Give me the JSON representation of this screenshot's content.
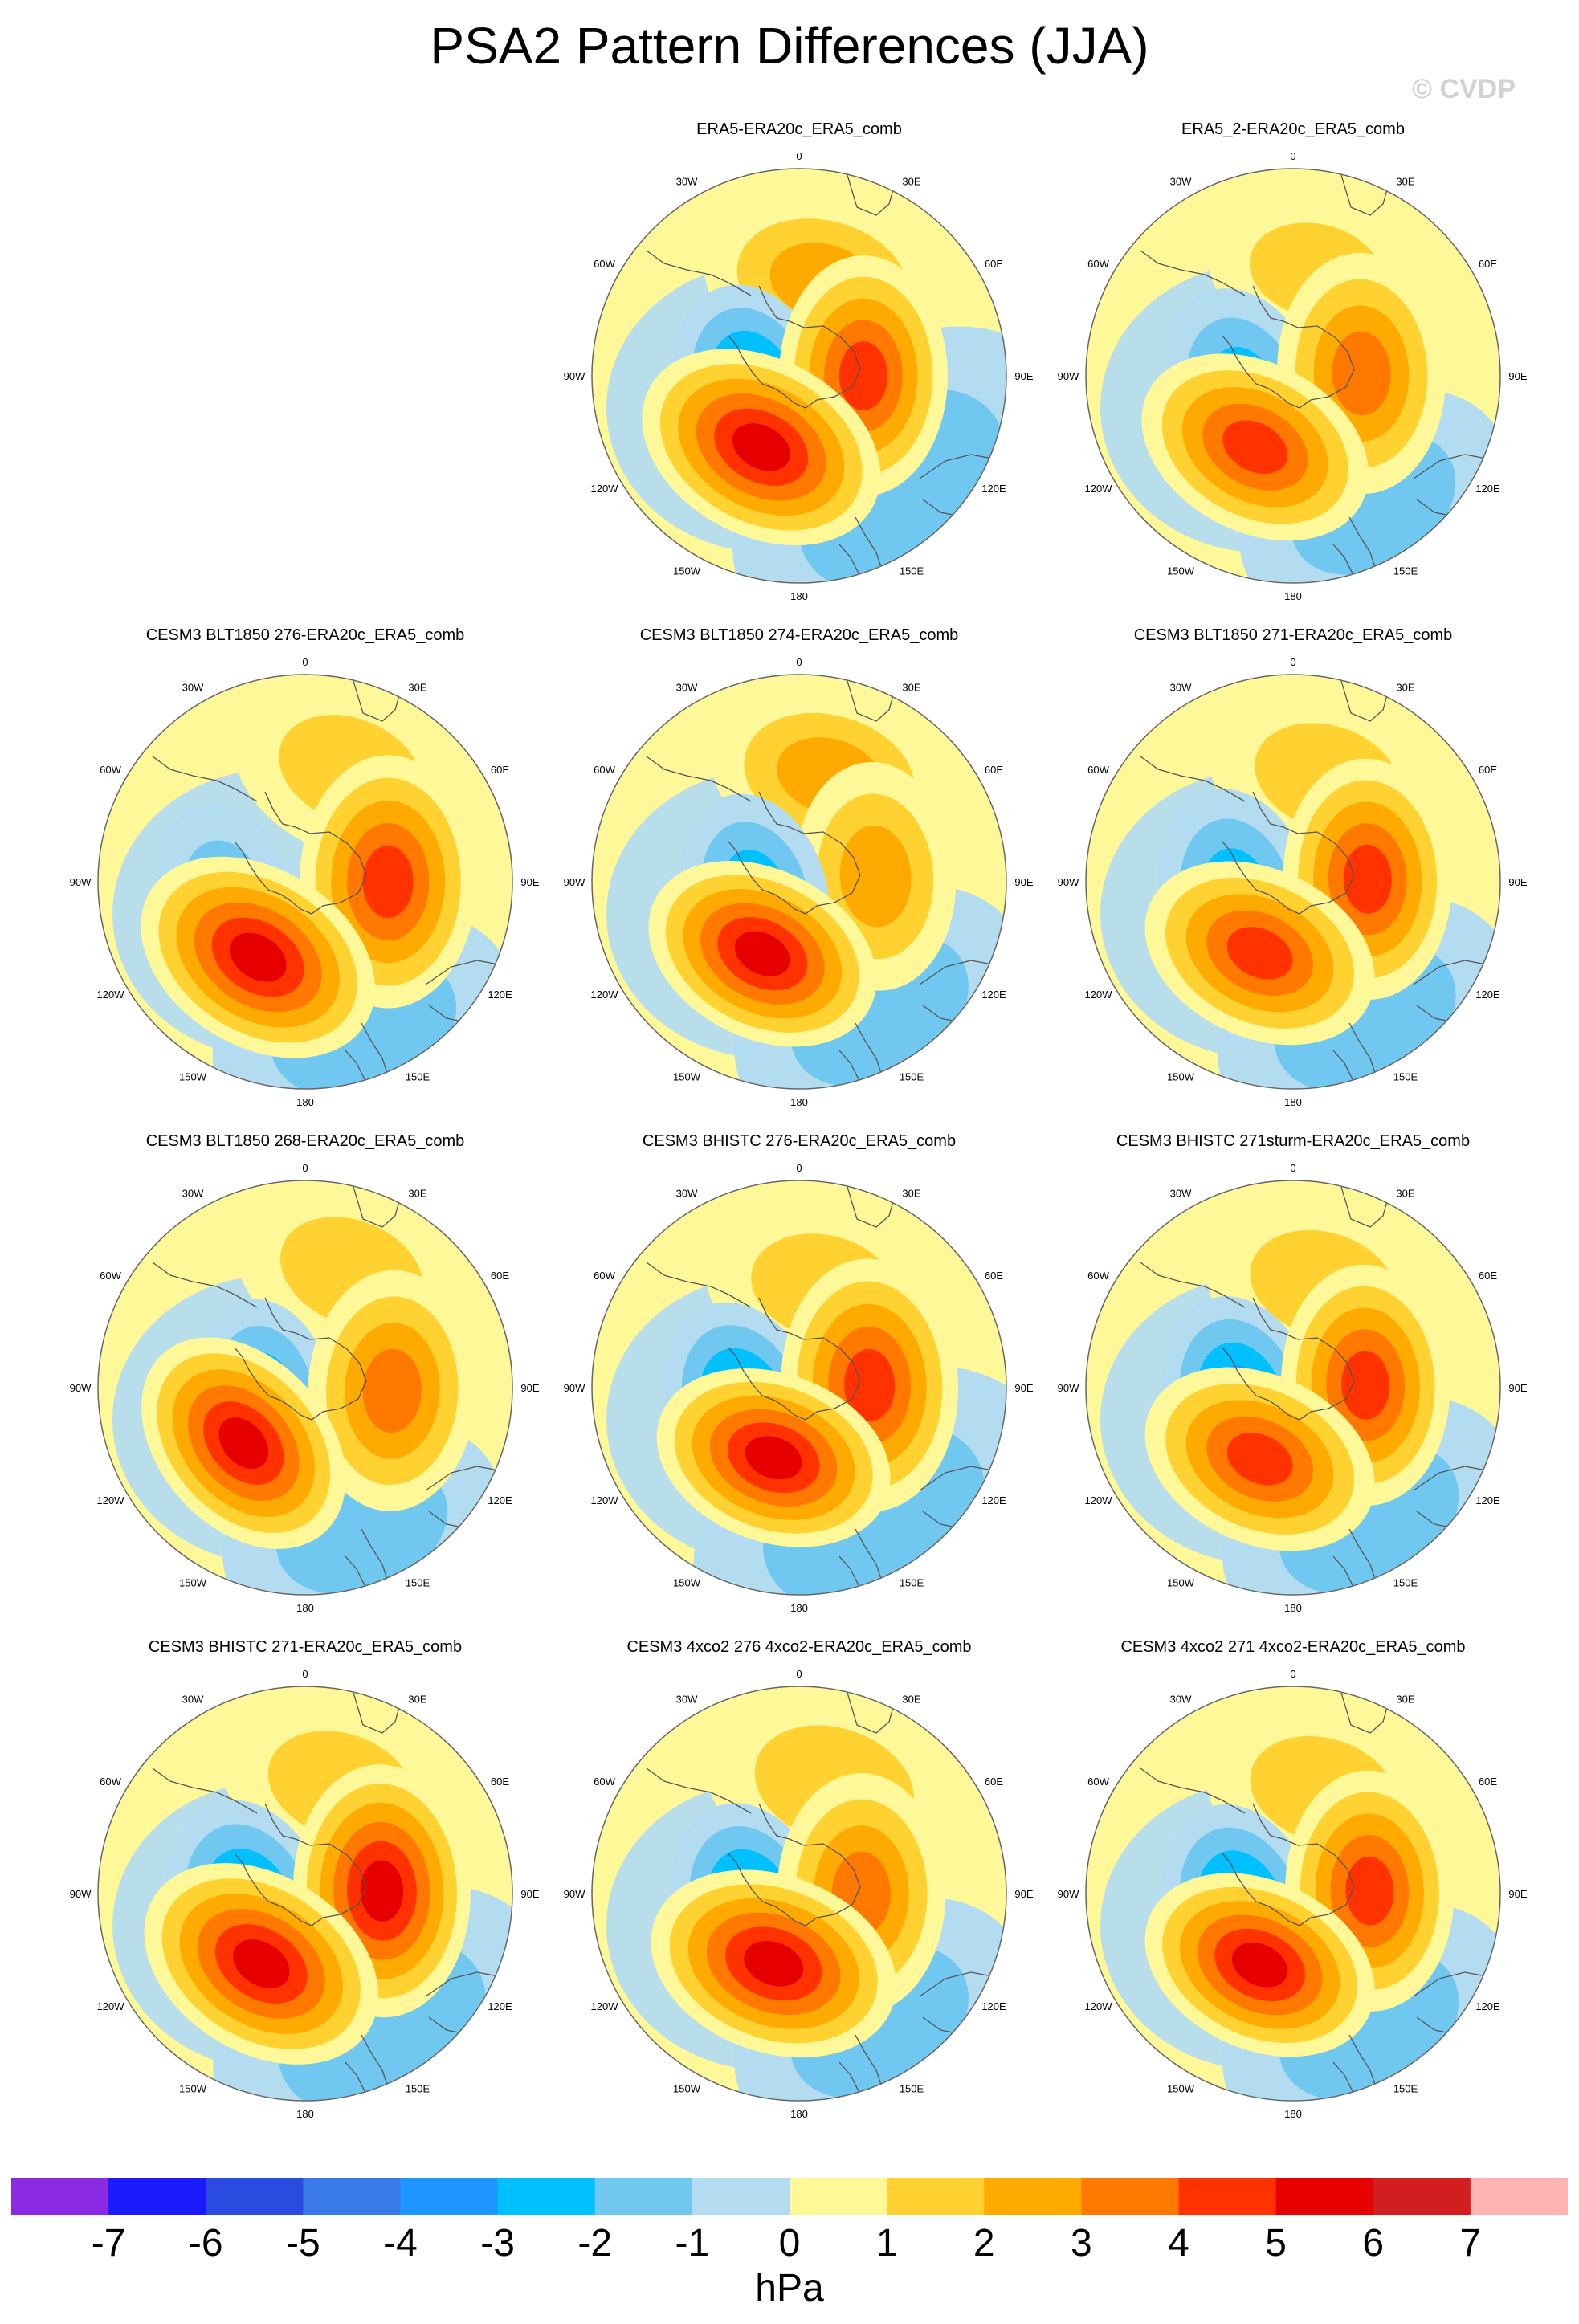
{
  "title": "PSA2 Pattern Differences (JJA)",
  "watermark": "© CVDP",
  "units": "hPa",
  "colors": {
    "levels": [
      "#8a2be2",
      "#1a1aff",
      "#2a4ae0",
      "#3a7ae8",
      "#1e96ff",
      "#00c0ff",
      "#70c8f0",
      "#b4dcf0",
      "#fff898",
      "#ffd232",
      "#ffaa00",
      "#ff7800",
      "#ff3200",
      "#e60000",
      "#d21e1e",
      "#ffb4b4"
    ],
    "coast": "#555555",
    "rim": "#666666"
  },
  "chart_data": {
    "type": "heatmap",
    "variable": "PSA2 pattern difference",
    "colorbar_ticks": [
      -7,
      -6,
      -5,
      -4,
      -3,
      -2,
      -1,
      0,
      1,
      2,
      3,
      4,
      5,
      6,
      7
    ],
    "lon_labels": [
      "0",
      "30E",
      "60E",
      "90E",
      "120E",
      "150E",
      "180",
      "150W",
      "120W",
      "90W",
      "60W",
      "30W"
    ],
    "panels": [
      {
        "title": "ERA5-ERA20c_ERA5_comb",
        "centers": [
          {
            "lon": 14,
            "colat": 0.47,
            "value": 2.3,
            "size": 1.0
          },
          {
            "lon": 90,
            "colat": 0.31,
            "value": 4.6,
            "size": 1.0
          },
          {
            "lon": 138,
            "colat": 0.74,
            "value": -1.4,
            "size": 1.6
          },
          {
            "lon": -152,
            "colat": 0.39,
            "value": 5.8,
            "size": 1.05
          },
          {
            "lon": -108,
            "colat": 0.23,
            "value": -3.3,
            "size": 0.9
          }
        ]
      },
      {
        "title": "ERA5_2-ERA20c_ERA5_comb",
        "centers": [
          {
            "lon": 12,
            "colat": 0.52,
            "value": 1.6,
            "size": 0.9
          },
          {
            "lon": 88,
            "colat": 0.33,
            "value": 4.0,
            "size": 1.0
          },
          {
            "lon": 148,
            "colat": 0.73,
            "value": -1.3,
            "size": 1.2
          },
          {
            "lon": -152,
            "colat": 0.39,
            "value": 5.0,
            "size": 1.0
          },
          {
            "lon": -110,
            "colat": 0.25,
            "value": -3.0,
            "size": 0.9
          }
        ]
      },
      {
        "title": "CESM3 BLT1850 276-ERA20c_ERA5_comb",
        "centers": [
          {
            "lon": 22,
            "colat": 0.58,
            "value": 1.8,
            "size": 1.0
          },
          {
            "lon": 90,
            "colat": 0.4,
            "value": 4.8,
            "size": 1.05
          },
          {
            "lon": 158,
            "colat": 0.75,
            "value": -1.2,
            "size": 1.3
          },
          {
            "lon": -148,
            "colat": 0.43,
            "value": 5.7,
            "size": 1.05
          },
          {
            "lon": -102,
            "colat": 0.4,
            "value": -1.8,
            "size": 0.8
          }
        ]
      },
      {
        "title": "CESM3 BLT1850 274-ERA20c_ERA5_comb",
        "centers": [
          {
            "lon": 16,
            "colat": 0.53,
            "value": 2.2,
            "size": 1.0
          },
          {
            "lon": 86,
            "colat": 0.37,
            "value": 2.7,
            "size": 0.95
          },
          {
            "lon": 148,
            "colat": 0.73,
            "value": -1.4,
            "size": 1.3
          },
          {
            "lon": -153,
            "colat": 0.39,
            "value": 5.3,
            "size": 1.0
          },
          {
            "lon": -106,
            "colat": 0.22,
            "value": -2.8,
            "size": 0.85
          }
        ]
      },
      {
        "title": "CESM3 BLT1850 271-ERA20c_ERA5_comb",
        "centers": [
          {
            "lon": 18,
            "colat": 0.53,
            "value": 2.0,
            "size": 1.0
          },
          {
            "lon": 88,
            "colat": 0.36,
            "value": 4.1,
            "size": 1.0
          },
          {
            "lon": 152,
            "colat": 0.74,
            "value": -1.6,
            "size": 1.3
          },
          {
            "lon": -155,
            "colat": 0.38,
            "value": 4.8,
            "size": 1.0
          },
          {
            "lon": -104,
            "colat": 0.28,
            "value": -3.0,
            "size": 0.9
          }
        ]
      },
      {
        "title": "CESM3 BLT1850 268-ERA20c_ERA5_comb",
        "centers": [
          {
            "lon": 22,
            "colat": 0.6,
            "value": 2.0,
            "size": 1.0
          },
          {
            "lon": 92,
            "colat": 0.42,
            "value": 3.8,
            "size": 1.0
          },
          {
            "lon": 158,
            "colat": 0.73,
            "value": -1.4,
            "size": 1.2
          },
          {
            "lon": -132,
            "colat": 0.4,
            "value": 5.6,
            "size": 1.0
          },
          {
            "lon": -100,
            "colat": 0.2,
            "value": -2.8,
            "size": 0.8
          }
        ]
      },
      {
        "title": "CESM3 BHISTC 276-ERA20c_ERA5_comb",
        "centers": [
          {
            "lon": 14,
            "colat": 0.5,
            "value": 2.0,
            "size": 1.0
          },
          {
            "lon": 88,
            "colat": 0.34,
            "value": 4.2,
            "size": 1.05
          },
          {
            "lon": 150,
            "colat": 0.72,
            "value": -1.4,
            "size": 1.6
          },
          {
            "lon": -160,
            "colat": 0.36,
            "value": 5.5,
            "size": 1.0
          },
          {
            "lon": -110,
            "colat": 0.28,
            "value": -3.2,
            "size": 0.9
          }
        ]
      },
      {
        "title": "CESM3 BHISTC 271sturm-ERA20c_ERA5_comb",
        "centers": [
          {
            "lon": 16,
            "colat": 0.52,
            "value": 2.0,
            "size": 1.0
          },
          {
            "lon": 88,
            "colat": 0.35,
            "value": 4.2,
            "size": 1.0
          },
          {
            "lon": 150,
            "colat": 0.73,
            "value": -1.5,
            "size": 1.3
          },
          {
            "lon": -155,
            "colat": 0.38,
            "value": 4.8,
            "size": 1.0
          },
          {
            "lon": -106,
            "colat": 0.26,
            "value": -3.5,
            "size": 0.9
          }
        ]
      },
      {
        "title": "CESM3 BHISTC 271-ERA20c_ERA5_comb",
        "centers": [
          {
            "lon": 18,
            "colat": 0.55,
            "value": 2.0,
            "size": 1.0
          },
          {
            "lon": 88,
            "colat": 0.37,
            "value": 5.3,
            "size": 1.05
          },
          {
            "lon": 150,
            "colat": 0.74,
            "value": -1.6,
            "size": 1.5
          },
          {
            "lon": -148,
            "colat": 0.4,
            "value": 5.7,
            "size": 1.05
          },
          {
            "lon": -108,
            "colat": 0.28,
            "value": -3.6,
            "size": 0.95
          }
        ]
      },
      {
        "title": "CESM3 4xco2 276 4xco2-ERA20c_ERA5_comb",
        "centers": [
          {
            "lon": 18,
            "colat": 0.55,
            "value": 2.0,
            "size": 1.1
          },
          {
            "lon": 90,
            "colat": 0.3,
            "value": 3.6,
            "size": 1.0
          },
          {
            "lon": 148,
            "colat": 0.73,
            "value": -1.3,
            "size": 1.3
          },
          {
            "lon": -160,
            "colat": 0.36,
            "value": 5.4,
            "size": 1.05
          },
          {
            "lon": -108,
            "colat": 0.24,
            "value": -3.2,
            "size": 0.9
          }
        ]
      },
      {
        "title": "CESM3 4xco2 271 4xco2-ERA20c_ERA5_comb",
        "centers": [
          {
            "lon": 16,
            "colat": 0.52,
            "value": 1.9,
            "size": 1.0
          },
          {
            "lon": 88,
            "colat": 0.37,
            "value": 4.6,
            "size": 1.0
          },
          {
            "lon": 150,
            "colat": 0.73,
            "value": -1.5,
            "size": 1.3
          },
          {
            "lon": -155,
            "colat": 0.38,
            "value": 5.5,
            "size": 1.0
          },
          {
            "lon": -108,
            "colat": 0.26,
            "value": -3.6,
            "size": 0.9
          }
        ]
      }
    ]
  }
}
